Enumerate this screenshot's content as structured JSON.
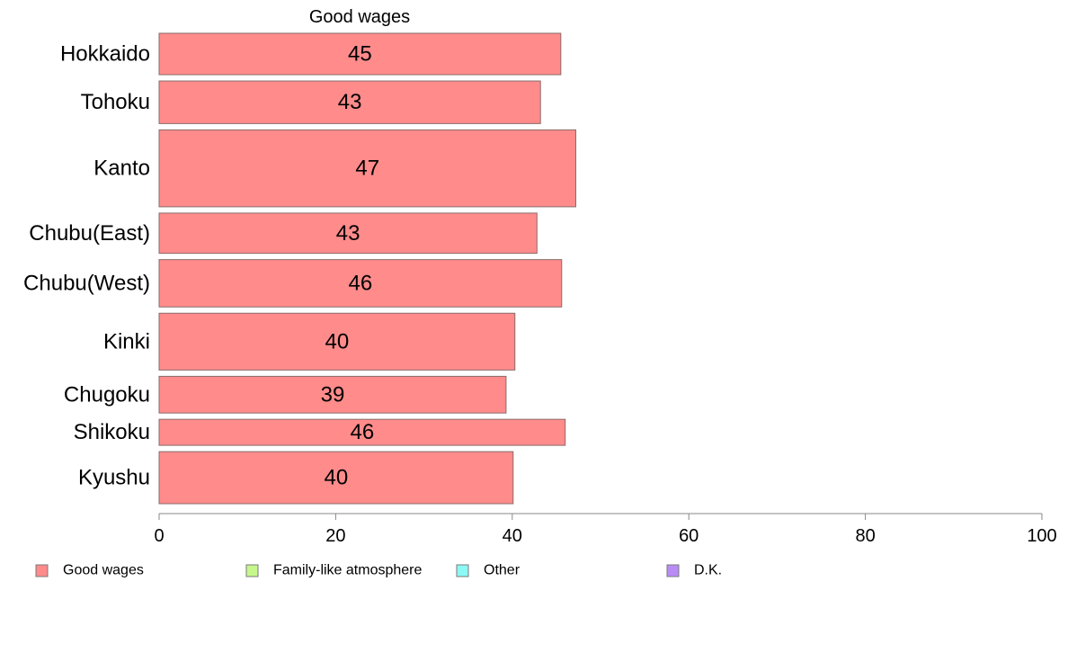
{
  "chart_data": {
    "type": "bar",
    "orientation": "horizontal",
    "title": "Good wages",
    "categories": [
      "Hokkaido",
      "Tohoku",
      "Kanto",
      "Chubu(East)",
      "Chubu(West)",
      "Kinki",
      "Chugoku",
      "Shikoku",
      "Kyushu"
    ],
    "values": [
      45.5,
      43.2,
      47.2,
      42.8,
      45.6,
      40.3,
      39.3,
      46.0,
      40.1
    ],
    "data_labels": [
      "45",
      "43",
      "47",
      "43",
      "46",
      "40",
      "39",
      "46",
      "40"
    ],
    "relative_bar_widths": [
      7,
      7.2,
      13,
      6.8,
      8,
      9.6,
      6.2,
      4.4,
      8.8
    ],
    "xlim": [
      0,
      100
    ],
    "xticks": [
      "0",
      "20",
      "40",
      "60",
      "80",
      "100"
    ],
    "grid": false,
    "legend_position": "bottom",
    "legend": [
      {
        "label": "Good wages",
        "color": "#ff8b8b"
      },
      {
        "label": "Family-like atmosphere",
        "color": "#c6f78c"
      },
      {
        "label": "Other",
        "color": "#8cf9f5"
      },
      {
        "label": "D.K.",
        "color": "#b98cf5"
      }
    ],
    "bar_color": "#ff8b8b",
    "bar_edge_color": "#8a6b6b"
  }
}
